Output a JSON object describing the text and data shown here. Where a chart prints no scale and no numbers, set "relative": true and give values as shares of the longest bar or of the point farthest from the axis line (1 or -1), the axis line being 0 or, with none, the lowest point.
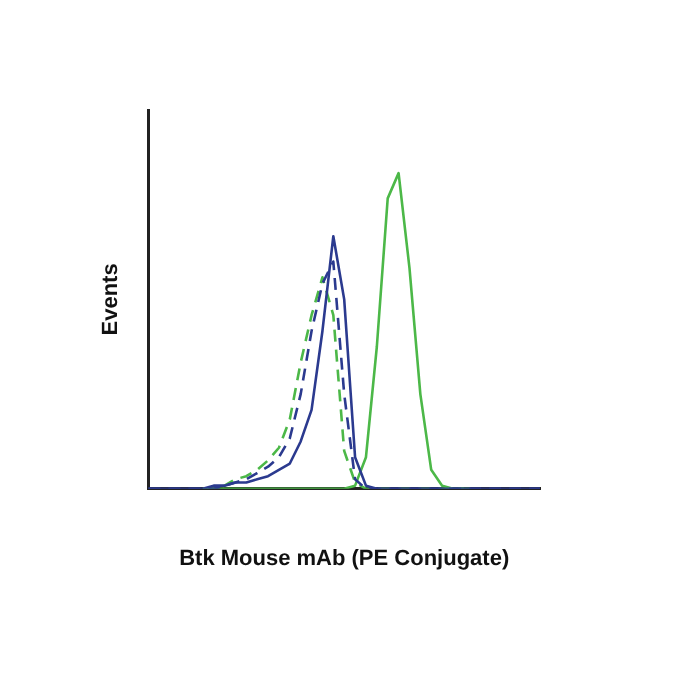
{
  "chart_data": {
    "type": "line",
    "relative": true,
    "xlabel": "Btk Mouse mAb (PE Conjugate)",
    "ylabel": "Events",
    "grid": false,
    "legend": false,
    "marker": "none",
    "categories": [
      null,
      null,
      null,
      null,
      null,
      null,
      null,
      null,
      null,
      null,
      null,
      null,
      null,
      null,
      null,
      null,
      null,
      null,
      null,
      null,
      null,
      null,
      null,
      null,
      null,
      null,
      null,
      null,
      null,
      null,
      null,
      null,
      null,
      null,
      null,
      null,
      null
    ],
    "series": [
      {
        "color": "#2b3a8f",
        "line_style": "solid",
        "values": [
          0,
          0,
          0,
          0,
          0,
          0,
          0.01,
          0.01,
          0.02,
          0.02,
          0.03,
          0.04,
          0.06,
          0.08,
          0.15,
          0.25,
          0.5,
          0.8,
          0.6,
          0.1,
          0.01,
          0,
          0,
          0,
          0,
          0,
          0,
          0,
          0,
          0,
          0,
          0,
          0,
          0,
          0,
          0,
          0
        ]
      },
      {
        "color": "#2b3a8f",
        "line_style": "dashed",
        "values": [
          0,
          0,
          0,
          0,
          0,
          0,
          0,
          0.01,
          0.02,
          0.03,
          0.05,
          0.07,
          0.1,
          0.16,
          0.3,
          0.5,
          0.65,
          0.72,
          0.3,
          0.03,
          0,
          0,
          0,
          0,
          0,
          0,
          0,
          0,
          0,
          0,
          0,
          0,
          0,
          0,
          0,
          0,
          0
        ]
      },
      {
        "color": "#4cb848",
        "line_style": "dashed",
        "values": [
          null,
          null,
          null,
          null,
          null,
          0,
          0,
          0.01,
          0.03,
          0.04,
          0.06,
          0.09,
          0.13,
          0.22,
          0.4,
          0.55,
          0.67,
          0.55,
          0.12,
          0.02,
          0,
          0,
          0,
          0,
          0,
          0,
          0,
          0,
          0,
          0,
          0,
          null,
          null,
          null,
          null,
          null,
          null
        ]
      },
      {
        "color": "#4cb848",
        "line_style": "solid",
        "values": [
          null,
          null,
          null,
          null,
          null,
          0,
          0,
          0,
          0,
          0,
          0,
          0,
          0,
          0,
          0,
          0,
          0,
          0,
          0,
          0.01,
          0.1,
          0.45,
          0.92,
          1,
          0.7,
          0.3,
          0.06,
          0.01,
          0,
          0,
          null,
          null,
          null,
          null,
          null,
          null,
          null
        ]
      }
    ]
  }
}
